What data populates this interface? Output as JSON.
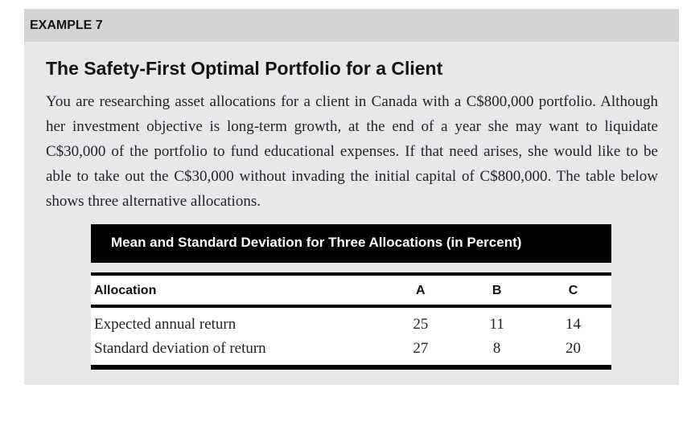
{
  "colors": {
    "example_header_bg": "#d2d3d5",
    "example_body_bg": "#e7e8e9",
    "exhibit_caption_bg": "#000000",
    "exhibit_caption_text": "#ffffff",
    "body_text": "#232329"
  },
  "example": {
    "label": "EXAMPLE 7",
    "title": "The Safety-First Optimal Portfolio for a Client",
    "paragraph": "You are researching asset allocations for a client in Canada with a C$800,000 portfolio. Although her investment objective is long-term growth, at the end of a year she may want to liquidate C$30,000 of the portfolio to fund educational expenses. If that need arises, she would like to be able to take out the C$30,000 without invading the initial capital of C$800,000. The table below shows three alternative allocations."
  },
  "exhibit": {
    "caption": "Mean and Standard Deviation for Three Allocations (in Percent)",
    "table": {
      "columns": [
        "Allocation",
        "A",
        "B",
        "C"
      ],
      "rows": [
        {
          "label": "Expected annual return",
          "values": [
            25,
            11,
            14
          ]
        },
        {
          "label": "Standard deviation of return",
          "values": [
            27,
            8,
            20
          ]
        }
      ]
    }
  }
}
